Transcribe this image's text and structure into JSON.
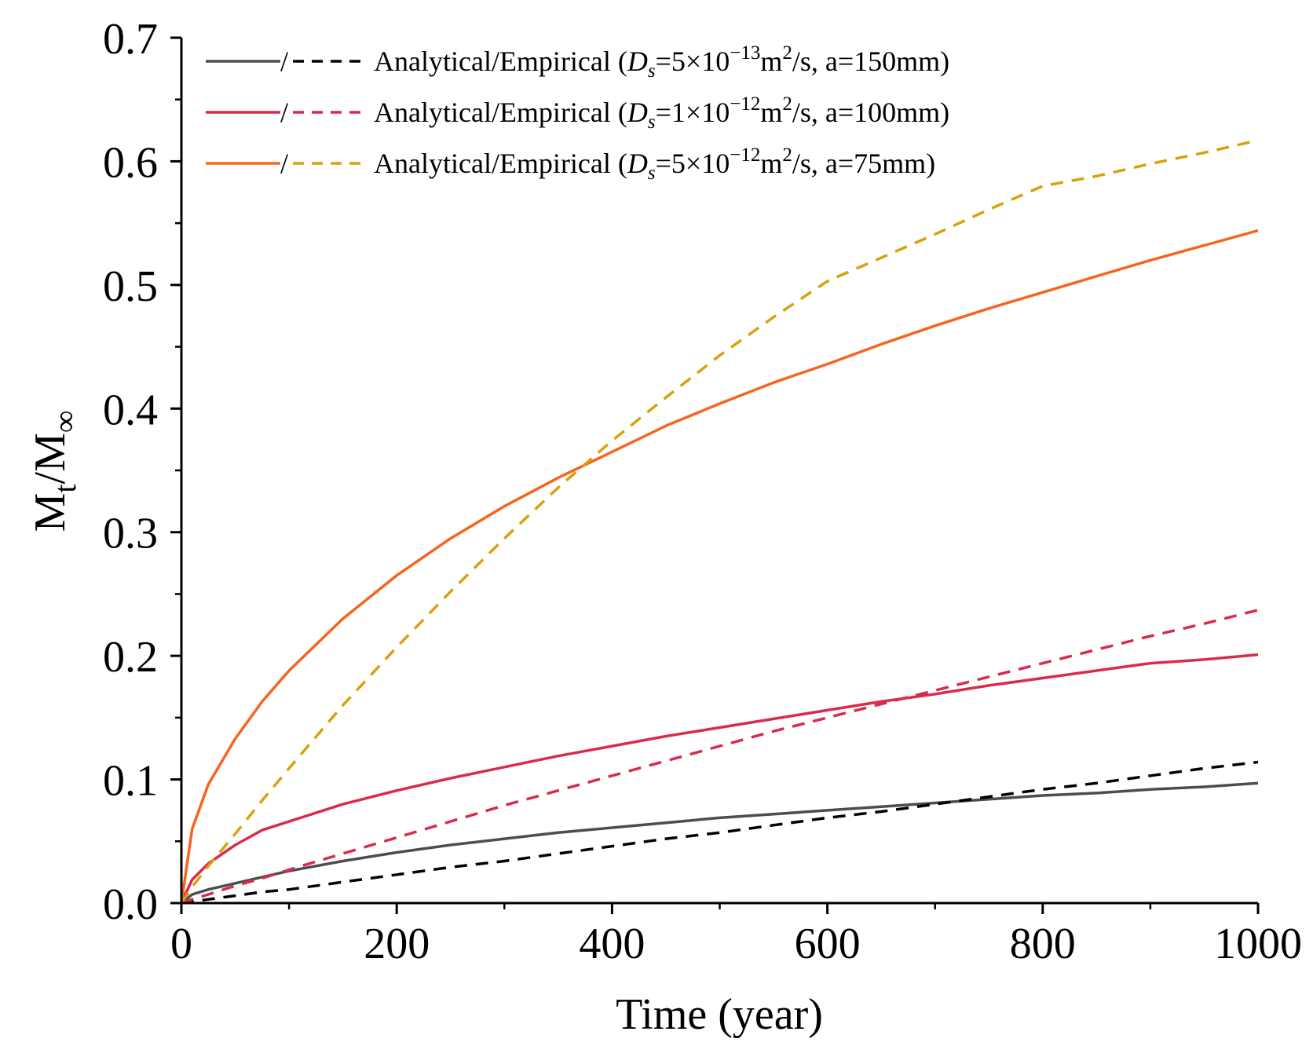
{
  "chart_data": {
    "type": "line",
    "xlabel": "Time (year)",
    "ylabel_main": "M",
    "ylabel_sub1": "t",
    "ylabel_mid": "/M",
    "ylabel_sub2": "∞",
    "xlim": [
      0,
      1000
    ],
    "ylim": [
      0,
      0.7
    ],
    "x_ticks": [
      0,
      200,
      400,
      600,
      800,
      1000
    ],
    "x_tick_labels": [
      "0",
      "200",
      "400",
      "600",
      "800",
      "1000"
    ],
    "y_ticks": [
      0,
      0.1,
      0.2,
      0.3,
      0.4,
      0.5,
      0.6,
      0.7
    ],
    "y_tick_labels": [
      "0.0",
      "0.1",
      "0.2",
      "0.3",
      "0.4",
      "0.5",
      "0.6",
      "0.7"
    ],
    "legend_position": "top-left",
    "legend": [
      {
        "sep": "/",
        "prefix": "Analytical/Empirical (",
        "d": "D",
        "d_sub": "s",
        "eq": "=5×10",
        "exp": "−13",
        "unit": "m",
        "unit_exp": "2",
        "suffix": "/s, a=150mm)",
        "solid_color": "#4d4d4d",
        "dash_color": "#000000"
      },
      {
        "sep": "/",
        "prefix": "Analytical/Empirical (",
        "d": "D",
        "d_sub": "s",
        "eq": "=1×10",
        "exp": "−12",
        "unit": "m",
        "unit_exp": "2",
        "suffix": "/s, a=100mm)",
        "solid_color": "#d92b4b",
        "dash_color": "#d92b4b"
      },
      {
        "sep": "/",
        "prefix": "Analytical/Empirical (",
        "d": "D",
        "d_sub": "s",
        "eq": "=5×10",
        "exp": "−12",
        "unit": "m",
        "unit_exp": "2",
        "suffix": "/s, a=75mm)",
        "solid_color": "#f7641e",
        "dash_color": "#d9a10a"
      }
    ],
    "x": [
      0,
      10,
      25,
      50,
      75,
      100,
      150,
      200,
      250,
      300,
      350,
      400,
      450,
      500,
      550,
      600,
      650,
      700,
      750,
      800,
      850,
      900,
      950,
      1000
    ],
    "series": [
      {
        "name": "Analytical (Ds=5e-13, a=150mm)",
        "style": "solid",
        "color": "#4d4d4d",
        "values": [
          0.0,
          0.007,
          0.011,
          0.016,
          0.021,
          0.026,
          0.034,
          0.041,
          0.047,
          0.052,
          0.057,
          0.061,
          0.065,
          0.069,
          0.072,
          0.075,
          0.078,
          0.081,
          0.084,
          0.087,
          0.089,
          0.092,
          0.094,
          0.097
        ]
      },
      {
        "name": "Empirical (Ds=5e-13, a=150mm)",
        "style": "dashed",
        "color": "#000000",
        "values": [
          0.0,
          0.001,
          0.003,
          0.006,
          0.009,
          0.011,
          0.017,
          0.023,
          0.029,
          0.034,
          0.04,
          0.046,
          0.052,
          0.057,
          0.063,
          0.069,
          0.074,
          0.08,
          0.086,
          0.092,
          0.097,
          0.103,
          0.109,
          0.114
        ]
      },
      {
        "name": "Analytical (Ds=1e-12, a=100mm)",
        "style": "solid",
        "color": "#d92b4b",
        "values": [
          0.0,
          0.019,
          0.032,
          0.047,
          0.059,
          0.066,
          0.08,
          0.091,
          0.101,
          0.11,
          0.119,
          0.127,
          0.135,
          0.142,
          0.149,
          0.156,
          0.163,
          0.169,
          0.176,
          0.182,
          0.188,
          0.194,
          0.197,
          0.201
        ]
      },
      {
        "name": "Empirical (Ds=1e-12, a=100mm)",
        "style": "dashed",
        "color": "#d92b4b",
        "values": [
          0.0,
          0.003,
          0.007,
          0.014,
          0.02,
          0.027,
          0.04,
          0.053,
          0.066,
          0.079,
          0.091,
          0.103,
          0.115,
          0.127,
          0.139,
          0.15,
          0.161,
          0.172,
          0.183,
          0.194,
          0.205,
          0.216,
          0.226,
          0.237
        ]
      },
      {
        "name": "Analytical (Ds=5e-12, a=75mm)",
        "style": "solid",
        "color": "#f7641e",
        "values": [
          0.0,
          0.06,
          0.096,
          0.133,
          0.163,
          0.188,
          0.23,
          0.265,
          0.295,
          0.321,
          0.344,
          0.365,
          0.386,
          0.404,
          0.421,
          0.436,
          0.452,
          0.467,
          0.481,
          0.494,
          0.507,
          0.52,
          0.532,
          0.544
        ]
      },
      {
        "name": "Empirical (Ds=5e-12, a=75mm)",
        "style": "dashed",
        "color": "#d9a10a",
        "values": [
          0.0,
          0.013,
          0.03,
          0.056,
          0.083,
          0.109,
          0.16,
          0.207,
          0.252,
          0.295,
          0.336,
          0.374,
          0.409,
          0.443,
          0.474,
          0.503,
          0.522,
          0.541,
          0.561,
          0.58,
          0.588,
          0.598,
          0.607,
          0.617
        ]
      }
    ]
  }
}
